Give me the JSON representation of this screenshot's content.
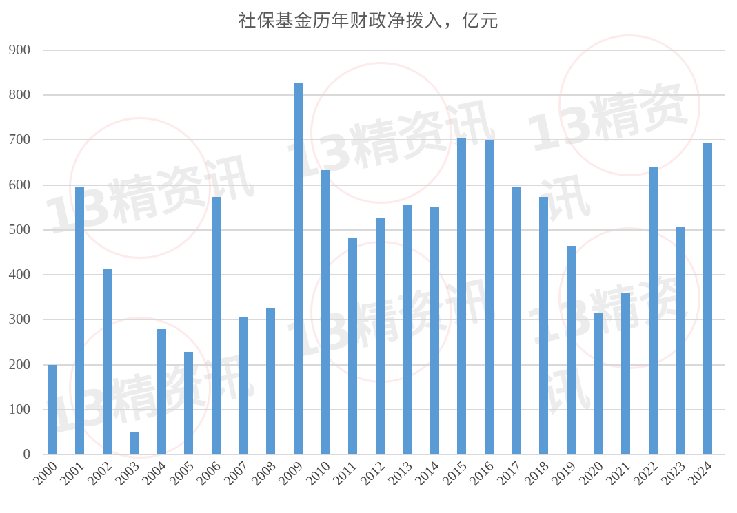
{
  "chart_data": {
    "type": "bar",
    "title": "社保基金历年财政净拨入，亿元",
    "xlabel": "",
    "ylabel": "",
    "ylim": [
      0,
      900
    ],
    "yticks": [
      0,
      100,
      200,
      300,
      400,
      500,
      600,
      700,
      800,
      900
    ],
    "grid": true,
    "legend": null,
    "bar_color": "#5b9bd5",
    "categories": [
      "2000",
      "2001",
      "2002",
      "2003",
      "2004",
      "2005",
      "2006",
      "2007",
      "2008",
      "2009",
      "2010",
      "2011",
      "2012",
      "2013",
      "2014",
      "2015",
      "2016",
      "2017",
      "2018",
      "2019",
      "2020",
      "2021",
      "2022",
      "2023",
      "2024"
    ],
    "values": [
      200,
      595,
      414,
      49,
      279,
      228,
      574,
      307,
      326,
      826,
      634,
      482,
      526,
      555,
      552,
      706,
      700,
      597,
      573,
      464,
      314,
      361,
      640,
      507,
      695
    ]
  },
  "watermark": {
    "text_num": "13",
    "text_cn": "精资讯"
  }
}
